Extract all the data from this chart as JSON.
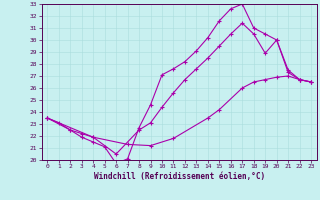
{
  "title": "",
  "xlabel": "Windchill (Refroidissement éolien,°C)",
  "bg_color": "#c8f0f0",
  "line_color": "#aa00aa",
  "xlim": [
    -0.5,
    23.5
  ],
  "ylim": [
    20,
    33
  ],
  "xticks": [
    0,
    1,
    2,
    3,
    4,
    5,
    6,
    7,
    8,
    9,
    10,
    11,
    12,
    13,
    14,
    15,
    16,
    17,
    18,
    19,
    20,
    21,
    22,
    23
  ],
  "yticks": [
    20,
    21,
    22,
    23,
    24,
    25,
    26,
    27,
    28,
    29,
    30,
    31,
    32,
    33
  ],
  "line1_x": [
    0,
    1,
    2,
    3,
    4,
    5,
    6,
    7,
    8,
    9,
    10,
    11,
    12,
    13,
    14,
    15,
    16,
    17,
    18,
    19,
    20,
    21,
    22,
    23
  ],
  "line1_y": [
    23.5,
    23.1,
    22.5,
    21.9,
    21.5,
    21.1,
    19.7,
    20.1,
    22.7,
    24.6,
    27.1,
    27.6,
    28.2,
    29.1,
    30.2,
    31.6,
    32.6,
    33.0,
    31.0,
    30.5,
    30.0,
    27.5,
    26.7,
    26.5
  ],
  "line2_x": [
    0,
    2,
    3,
    4,
    7,
    9,
    11,
    14,
    15,
    17,
    18,
    19,
    20,
    21,
    22,
    23
  ],
  "line2_y": [
    23.5,
    22.5,
    22.2,
    21.9,
    21.3,
    21.2,
    21.8,
    23.5,
    24.2,
    26.0,
    26.5,
    26.7,
    26.9,
    27.0,
    26.7,
    26.5
  ],
  "line3_x": [
    0,
    4,
    6,
    8,
    9,
    10,
    11,
    12,
    13,
    14,
    15,
    16,
    17,
    18,
    19,
    20,
    21,
    22,
    23
  ],
  "line3_y": [
    23.5,
    21.9,
    20.5,
    22.5,
    23.1,
    24.4,
    25.6,
    26.7,
    27.6,
    28.5,
    29.5,
    30.5,
    31.4,
    30.5,
    28.9,
    30.0,
    27.3,
    26.7,
    26.5
  ]
}
